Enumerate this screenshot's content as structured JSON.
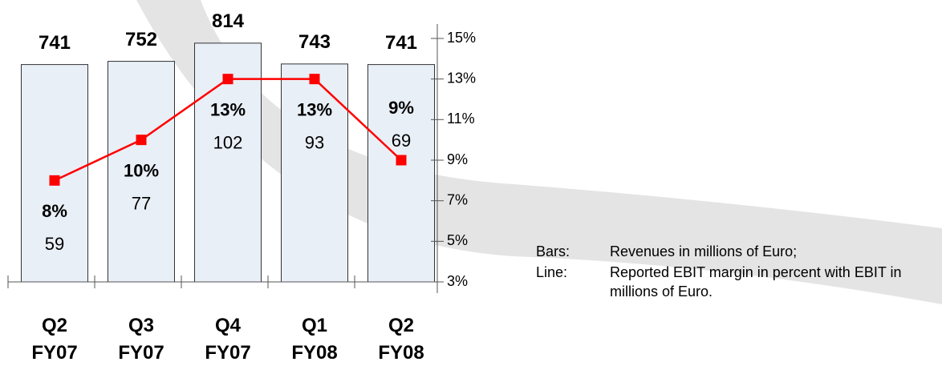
{
  "chart_data": {
    "type": "bar-line",
    "categories": [
      "Q2 FY07",
      "Q3 FY07",
      "Q4 FY07",
      "Q1 FY08",
      "Q2 FY08"
    ],
    "series": [
      {
        "name": "Revenues",
        "type": "bar",
        "color": "#e9eff7",
        "values": [
          741,
          752,
          814,
          743,
          741
        ]
      },
      {
        "name": "EBIT margin",
        "type": "line",
        "axis": "y2",
        "color": "#ff0000",
        "values": [
          8,
          10,
          13,
          13,
          9
        ],
        "value_labels": [
          "8%",
          "10%",
          "13%",
          "13%",
          "9%"
        ]
      }
    ],
    "ebit": [
      59,
      77,
      102,
      93,
      69
    ],
    "ylim": [
      0,
      830
    ],
    "y2lim": [
      3,
      15
    ],
    "y2ticks": [
      {
        "value": 3,
        "label": "3%"
      },
      {
        "value": 5,
        "label": "5%"
      },
      {
        "value": 7,
        "label": "7%"
      },
      {
        "value": 9,
        "label": "9%"
      },
      {
        "value": 11,
        "label": "11%"
      },
      {
        "value": 13,
        "label": "13%"
      },
      {
        "value": 15,
        "label": "15%"
      }
    ],
    "notes": [
      {
        "key": "Bars:",
        "text": "Revenues in millions of Euro;"
      },
      {
        "key": "Line:",
        "text": "Reported EBIT margin in percent with EBIT in millions of Euro."
      }
    ]
  }
}
